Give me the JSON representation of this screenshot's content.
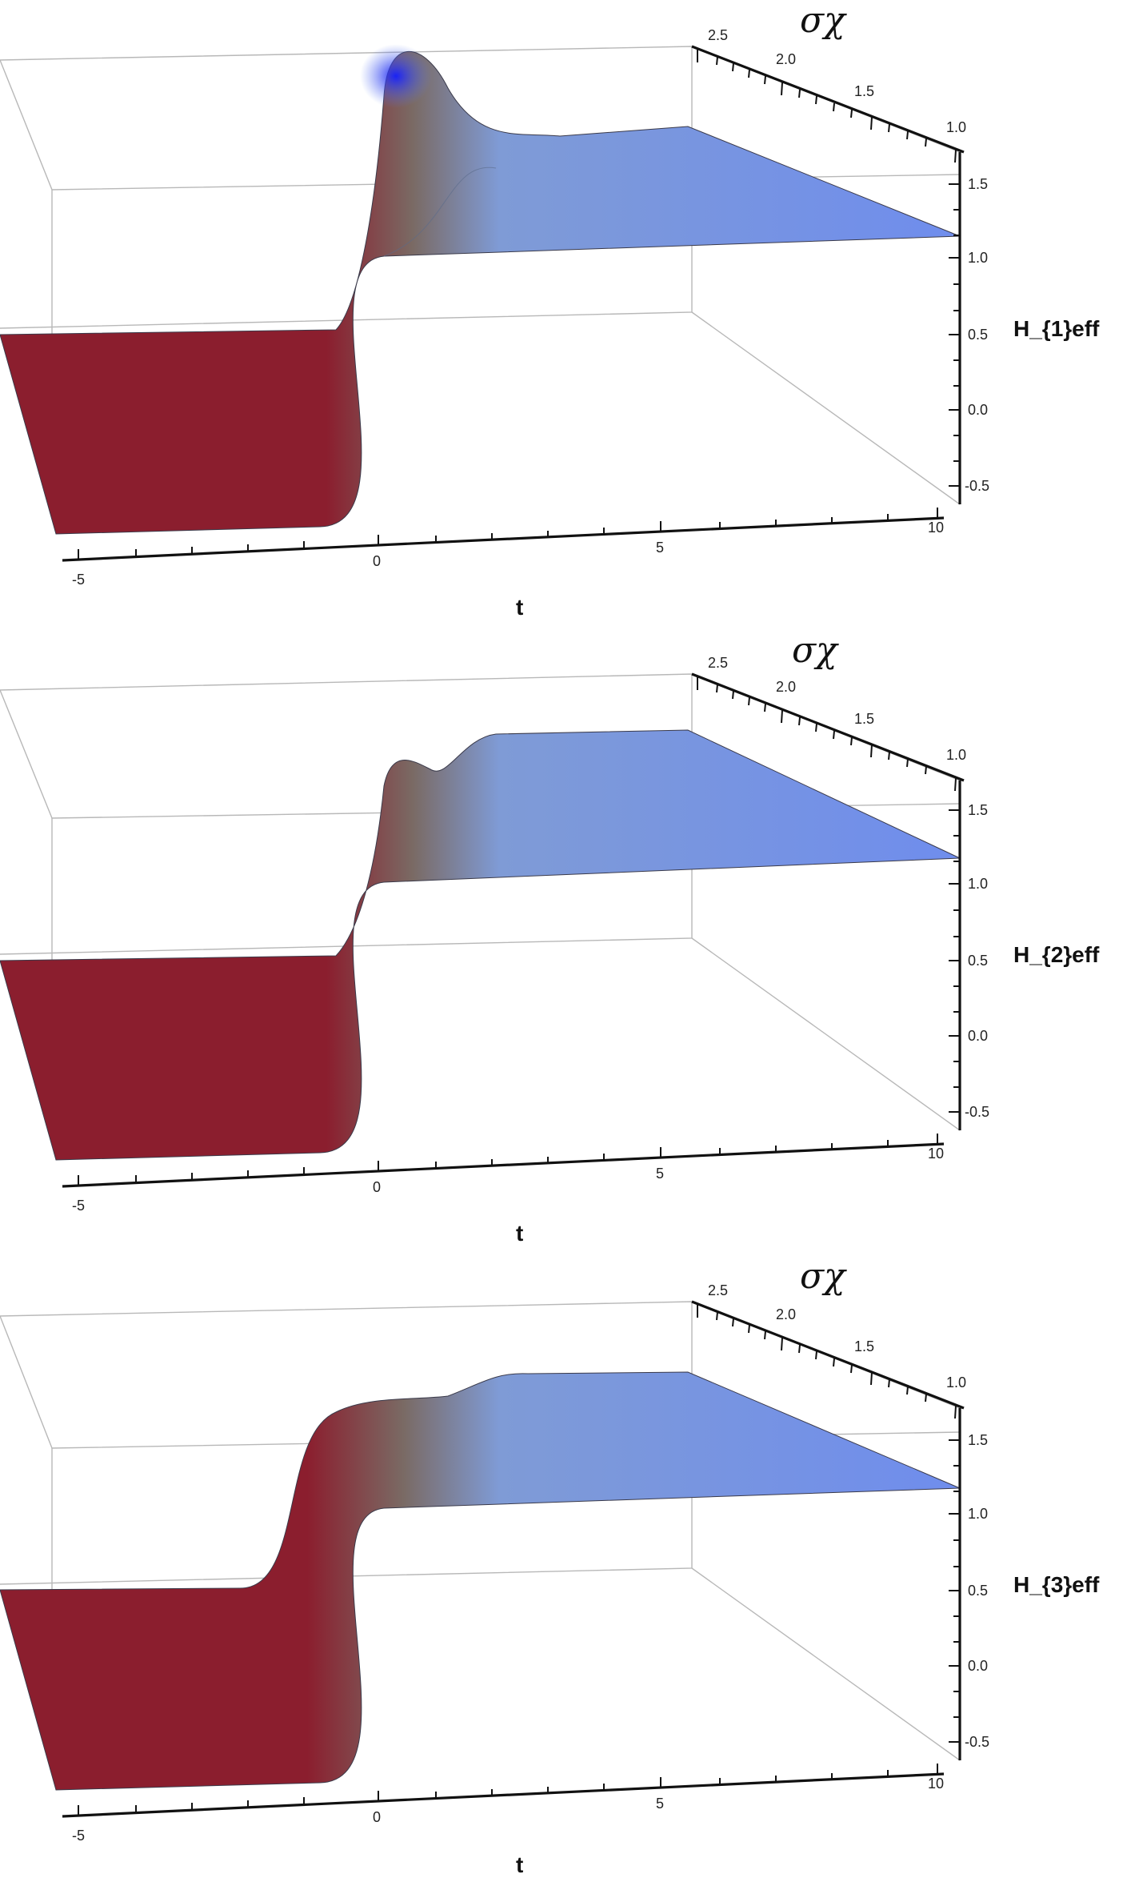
{
  "figure": {
    "panels": [
      {
        "id": "h1",
        "t_axis_label": "t",
        "z_axis_label": "H_{1}eff",
        "sigma_axis_label": "σχ",
        "t_ticks": [
          "-5",
          "0",
          "5",
          "10"
        ],
        "sigma_ticks": [
          "2.5",
          "2.0",
          "1.5",
          "1.0"
        ],
        "z_ticks": [
          "1.5",
          "1.0",
          "0.5",
          "0.0",
          "-0.5"
        ]
      },
      {
        "id": "h2",
        "t_axis_label": "t",
        "z_axis_label": "H_{2}eff",
        "sigma_axis_label": "σχ",
        "t_ticks": [
          "-5",
          "0",
          "5",
          "10"
        ],
        "sigma_ticks": [
          "2.5",
          "2.0",
          "1.5",
          "1.0"
        ],
        "z_ticks": [
          "1.5",
          "1.0",
          "0.5",
          "0.0",
          "-0.5"
        ]
      },
      {
        "id": "h3",
        "t_axis_label": "t",
        "z_axis_label": "H_{3}eff",
        "sigma_axis_label": "σχ",
        "t_ticks": [
          "-5",
          "0",
          "5",
          "10"
        ],
        "sigma_ticks": [
          "2.5",
          "2.0",
          "1.5",
          "1.0"
        ],
        "z_ticks": [
          "1.5",
          "1.0",
          "0.5",
          "0.0",
          "-0.5"
        ]
      }
    ]
  },
  "chart_data": [
    {
      "type": "surface",
      "x_variable": "t",
      "y_variable": "σχ",
      "z_variable": "H_{1}eff",
      "xlim": [
        -5,
        10
      ],
      "ylim": [
        1.0,
        2.5
      ],
      "zlim": [
        -0.5,
        1.7
      ],
      "z_low_plateau": 0.0,
      "z_high_plateau": 1.2,
      "transition_t": 0,
      "peak_z": 1.7,
      "peak_location": "t≈0, σχ=2.5",
      "colormap": [
        "#8b1e2e",
        "#6b86e8",
        "#2f3cf0"
      ]
    },
    {
      "type": "surface",
      "x_variable": "t",
      "y_variable": "σχ",
      "z_variable": "H_{2}eff",
      "xlim": [
        -5,
        10
      ],
      "ylim": [
        1.0,
        2.5
      ],
      "zlim": [
        -0.5,
        1.7
      ],
      "z_low_plateau": 0.0,
      "z_high_plateau": 1.2,
      "transition_t": 0,
      "peak_z": 1.3,
      "peak_location": "t≈0, σχ=2.5",
      "colormap": [
        "#8b1e2e",
        "#6b86e8",
        "#2f3cf0"
      ]
    },
    {
      "type": "surface",
      "x_variable": "t",
      "y_variable": "σχ",
      "z_variable": "H_{3}eff",
      "xlim": [
        -5,
        10
      ],
      "ylim": [
        1.0,
        2.5
      ],
      "zlim": [
        -0.5,
        1.7
      ],
      "z_low_plateau": 0.0,
      "z_high_plateau": 1.2,
      "transition_t": 0,
      "peak_z": 1.25,
      "peak_location": "t≈2, σχ=2.5",
      "colormap": [
        "#8b1e2e",
        "#6b86e8",
        "#2f3cf0"
      ]
    }
  ]
}
